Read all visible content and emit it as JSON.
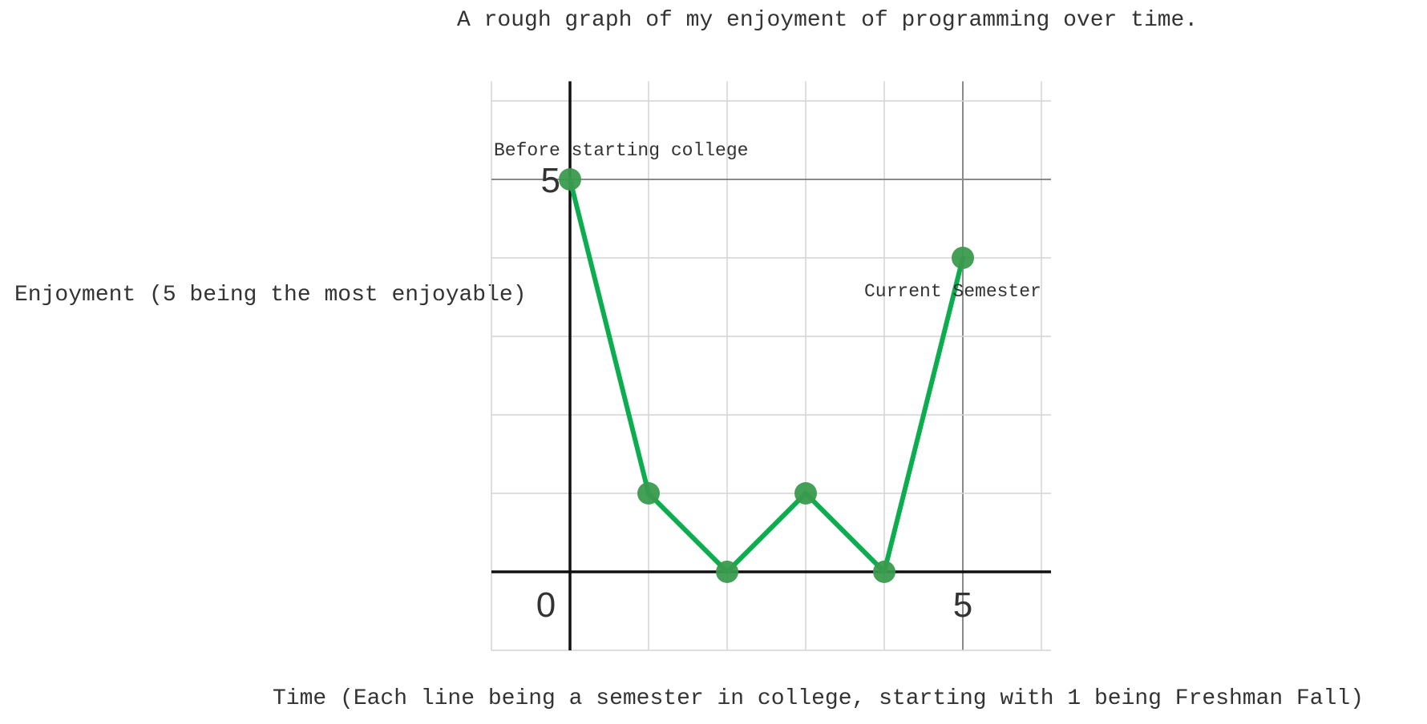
{
  "chart_data": {
    "type": "line",
    "title": "A rough graph of my enjoyment of programming over time.",
    "xlabel": "Time (Each line being a semester in college, starting with 1 being Freshman Fall)",
    "ylabel": "Enjoyment (5 being the most enjoyable)",
    "xlim": [
      -1,
      6
    ],
    "ylim": [
      -1,
      6.25
    ],
    "x_ticks": [
      "0",
      "5"
    ],
    "y_ticks": [
      "5"
    ],
    "grid": true,
    "series": [
      {
        "x": [
          0,
          1,
          2,
          3,
          4,
          5
        ],
        "y": [
          5,
          1,
          0,
          1,
          0,
          4
        ]
      }
    ],
    "annotations": [
      {
        "text": "Before starting college",
        "x": 0,
        "y": 5
      },
      {
        "text": "Current Semester",
        "x": 5,
        "y": 4
      }
    ],
    "colors": {
      "line": "#0bad4f",
      "point": "#3a9a4e",
      "axis": "#111111",
      "grid_major": "#8a8a8a",
      "grid_minor": "#d4d4d4"
    }
  }
}
